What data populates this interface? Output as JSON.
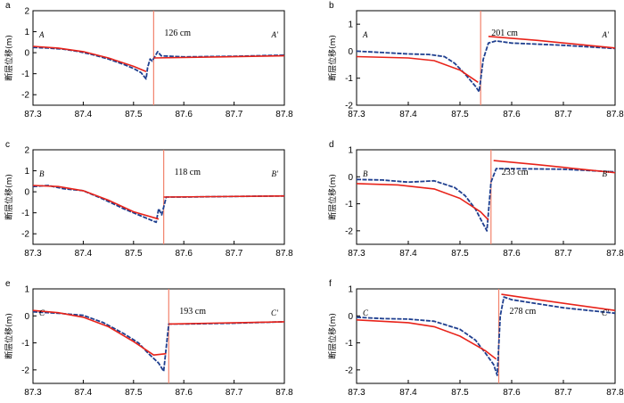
{
  "colors": {
    "observed": "#1f3f8f",
    "model": "#e8231a",
    "fault_line": "#f2826b",
    "axis": "#000000"
  },
  "chart_data": [
    {
      "panel": "a",
      "type": "line",
      "ylabel": "断层位移(m)",
      "xlim": [
        87.3,
        87.8
      ],
      "ylim": [
        -2.5,
        2
      ],
      "xticks": [
        "87.3",
        "87.4",
        "87.5",
        "87.6",
        "87.7",
        "87.8"
      ],
      "yticks": [
        "2",
        "1",
        "0",
        "-1",
        "-2"
      ],
      "left_label": "A",
      "right_label": "A′",
      "offset_label": "126 cm",
      "fault_x": 87.54,
      "series": [
        {
          "role": "observed",
          "points": [
            [
              87.3,
              0.25
            ],
            [
              87.33,
              0.22
            ],
            [
              87.36,
              0.17
            ],
            [
              87.39,
              0.06
            ],
            [
              87.42,
              -0.1
            ],
            [
              87.45,
              -0.3
            ],
            [
              87.48,
              -0.55
            ],
            [
              87.5,
              -0.75
            ],
            [
              87.515,
              -0.95
            ],
            [
              87.525,
              -1.25
            ],
            [
              87.528,
              -0.7
            ],
            [
              87.533,
              -0.3
            ],
            [
              87.537,
              -0.4
            ],
            [
              87.542,
              -0.2
            ],
            [
              87.548,
              0.05
            ],
            [
              87.555,
              -0.15
            ],
            [
              87.6,
              -0.2
            ],
            [
              87.7,
              -0.17
            ],
            [
              87.8,
              -0.12
            ]
          ]
        },
        {
          "role": "model",
          "points": [
            [
              87.3,
              0.3
            ],
            [
              87.35,
              0.22
            ],
            [
              87.4,
              0.05
            ],
            [
              87.45,
              -0.25
            ],
            [
              87.5,
              -0.65
            ],
            [
              87.525,
              -0.9
            ]
          ]
        },
        {
          "role": "model",
          "points": [
            [
              87.54,
              -0.25
            ],
            [
              87.8,
              -0.15
            ]
          ]
        }
      ]
    },
    {
      "panel": "b",
      "type": "line",
      "ylabel": "断层位移(m)",
      "xlim": [
        87.3,
        87.8
      ],
      "ylim": [
        -2,
        1.5
      ],
      "xticks": [
        "87.3",
        "87.4",
        "87.5",
        "87.6",
        "87.7",
        "87.8"
      ],
      "yticks": [
        "1",
        "0",
        "-1",
        "-2"
      ],
      "left_label": "A",
      "right_label": "A′",
      "offset_label": "201 cm",
      "fault_x": 87.54,
      "series": [
        {
          "role": "observed",
          "points": [
            [
              87.3,
              0
            ],
            [
              87.35,
              -0.05
            ],
            [
              87.4,
              -0.1
            ],
            [
              87.44,
              -0.12
            ],
            [
              87.47,
              -0.2
            ],
            [
              87.49,
              -0.45
            ],
            [
              87.51,
              -0.85
            ],
            [
              87.53,
              -1.3
            ],
            [
              87.537,
              -1.5
            ],
            [
              87.545,
              -0.3
            ],
            [
              87.555,
              0.3
            ],
            [
              87.57,
              0.38
            ],
            [
              87.6,
              0.3
            ],
            [
              87.7,
              0.22
            ],
            [
              87.8,
              0.1
            ]
          ]
        },
        {
          "role": "model",
          "points": [
            [
              87.3,
              -0.2
            ],
            [
              87.4,
              -0.25
            ],
            [
              87.45,
              -0.35
            ],
            [
              87.5,
              -0.7
            ],
            [
              87.535,
              -1.15
            ]
          ]
        },
        {
          "role": "model",
          "points": [
            [
              87.555,
              0.55
            ],
            [
              87.65,
              0.4
            ],
            [
              87.8,
              0.12
            ]
          ]
        }
      ]
    },
    {
      "panel": "c",
      "type": "line",
      "ylabel": "断层位移(m)",
      "xlim": [
        87.3,
        87.8
      ],
      "ylim": [
        -2.5,
        2
      ],
      "xticks": [
        "87.3",
        "87.4",
        "87.5",
        "87.6",
        "87.7",
        "87.8"
      ],
      "yticks": [
        "2",
        "1",
        "0",
        "-1",
        "-2"
      ],
      "left_label": "B",
      "right_label": "B′",
      "offset_label": "118 cm",
      "fault_x": 87.56,
      "series": [
        {
          "role": "observed",
          "points": [
            [
              87.3,
              0.25
            ],
            [
              87.33,
              0.3
            ],
            [
              87.36,
              0.15
            ],
            [
              87.4,
              0.05
            ],
            [
              87.44,
              -0.35
            ],
            [
              87.48,
              -0.8
            ],
            [
              87.51,
              -1.1
            ],
            [
              87.53,
              -1.3
            ],
            [
              87.545,
              -1.45
            ],
            [
              87.55,
              -0.8
            ],
            [
              87.556,
              -1.1
            ],
            [
              87.565,
              -0.25
            ],
            [
              87.6,
              -0.25
            ],
            [
              87.7,
              -0.22
            ],
            [
              87.8,
              -0.2
            ]
          ]
        },
        {
          "role": "model",
          "points": [
            [
              87.3,
              0.3
            ],
            [
              87.35,
              0.25
            ],
            [
              87.4,
              0.05
            ],
            [
              87.45,
              -0.4
            ],
            [
              87.5,
              -0.95
            ],
            [
              87.55,
              -1.3
            ]
          ]
        },
        {
          "role": "model",
          "points": [
            [
              87.56,
              -0.25
            ],
            [
              87.8,
              -0.2
            ]
          ]
        }
      ]
    },
    {
      "panel": "d",
      "type": "line",
      "ylabel": "断层位移(m)",
      "xlim": [
        87.3,
        87.8
      ],
      "ylim": [
        -2.5,
        1
      ],
      "xticks": [
        "87.3",
        "87.4",
        "87.5",
        "87.6",
        "87.7",
        "87.8"
      ],
      "yticks": [
        "1",
        "0",
        "-1",
        "-2"
      ],
      "left_label": "B",
      "right_label": "B′",
      "offset_label": "233 cm",
      "fault_x": 87.56,
      "series": [
        {
          "role": "observed",
          "points": [
            [
              87.3,
              -0.1
            ],
            [
              87.35,
              -0.12
            ],
            [
              87.4,
              -0.2
            ],
            [
              87.45,
              -0.15
            ],
            [
              87.49,
              -0.4
            ],
            [
              87.51,
              -0.7
            ],
            [
              87.53,
              -1.2
            ],
            [
              87.545,
              -1.75
            ],
            [
              87.552,
              -2.0
            ],
            [
              87.56,
              -0.2
            ],
            [
              87.57,
              0.3
            ],
            [
              87.6,
              0.3
            ],
            [
              87.7,
              0.28
            ],
            [
              87.8,
              0.18
            ]
          ]
        },
        {
          "role": "model",
          "points": [
            [
              87.3,
              -0.25
            ],
            [
              87.38,
              -0.3
            ],
            [
              87.45,
              -0.45
            ],
            [
              87.5,
              -0.8
            ],
            [
              87.54,
              -1.3
            ],
            [
              87.555,
              -1.6
            ]
          ]
        },
        {
          "role": "model",
          "points": [
            [
              87.565,
              0.6
            ],
            [
              87.65,
              0.45
            ],
            [
              87.8,
              0.15
            ]
          ]
        }
      ]
    },
    {
      "panel": "e",
      "type": "line",
      "ylabel": "断层位移(m)",
      "xlim": [
        87.3,
        87.8
      ],
      "ylim": [
        -2.5,
        1
      ],
      "xticks": [
        "87.3",
        "87.4",
        "87.5",
        "87.6",
        "87.7",
        "87.8"
      ],
      "yticks": [
        "1",
        "0",
        "-1",
        "-2"
      ],
      "left_label": "C",
      "right_label": "C′",
      "offset_label": "193 cm",
      "fault_x": 87.57,
      "series": [
        {
          "role": "observed",
          "points": [
            [
              87.3,
              0.15
            ],
            [
              87.35,
              0.1
            ],
            [
              87.4,
              0.02
            ],
            [
              87.44,
              -0.25
            ],
            [
              87.48,
              -0.65
            ],
            [
              87.51,
              -1.0
            ],
            [
              87.53,
              -1.4
            ],
            [
              87.55,
              -1.75
            ],
            [
              87.56,
              -2.05
            ],
            [
              87.57,
              -0.3
            ],
            [
              87.6,
              -0.3
            ],
            [
              87.7,
              -0.27
            ],
            [
              87.8,
              -0.22
            ]
          ]
        },
        {
          "role": "model",
          "points": [
            [
              87.3,
              0.2
            ],
            [
              87.35,
              0.12
            ],
            [
              87.4,
              -0.05
            ],
            [
              87.45,
              -0.4
            ],
            [
              87.5,
              -0.95
            ],
            [
              87.54,
              -1.45
            ],
            [
              87.565,
              -1.4
            ]
          ]
        },
        {
          "role": "model",
          "points": [
            [
              87.57,
              -0.3
            ],
            [
              87.8,
              -0.22
            ]
          ]
        }
      ]
    },
    {
      "panel": "f",
      "type": "line",
      "ylabel": "断层位移(m)",
      "xlim": [
        87.3,
        87.8
      ],
      "ylim": [
        -2.5,
        1
      ],
      "xticks": [
        "87.3",
        "87.4",
        "87.5",
        "87.6",
        "87.7",
        "87.8"
      ],
      "yticks": [
        "1",
        "0",
        "-1",
        "-2"
      ],
      "left_label": "C",
      "right_label": "C′",
      "offset_label": "278 cm",
      "fault_x": 87.575,
      "series": [
        {
          "role": "observed",
          "points": [
            [
              87.3,
              -0.05
            ],
            [
              87.35,
              -0.1
            ],
            [
              87.4,
              -0.12
            ],
            [
              87.45,
              -0.2
            ],
            [
              87.5,
              -0.5
            ],
            [
              87.53,
              -0.9
            ],
            [
              87.55,
              -1.4
            ],
            [
              87.565,
              -1.8
            ],
            [
              87.572,
              -2.2
            ],
            [
              87.578,
              0.0
            ],
            [
              87.585,
              0.7
            ],
            [
              87.6,
              0.6
            ],
            [
              87.7,
              0.3
            ],
            [
              87.8,
              0.1
            ]
          ]
        },
        {
          "role": "model",
          "points": [
            [
              87.3,
              -0.15
            ],
            [
              87.4,
              -0.25
            ],
            [
              87.45,
              -0.4
            ],
            [
              87.5,
              -0.75
            ],
            [
              87.55,
              -1.3
            ],
            [
              87.57,
              -1.6
            ]
          ]
        },
        {
          "role": "model",
          "points": [
            [
              87.58,
              0.8
            ],
            [
              87.65,
              0.6
            ],
            [
              87.8,
              0.2
            ]
          ]
        }
      ]
    }
  ]
}
